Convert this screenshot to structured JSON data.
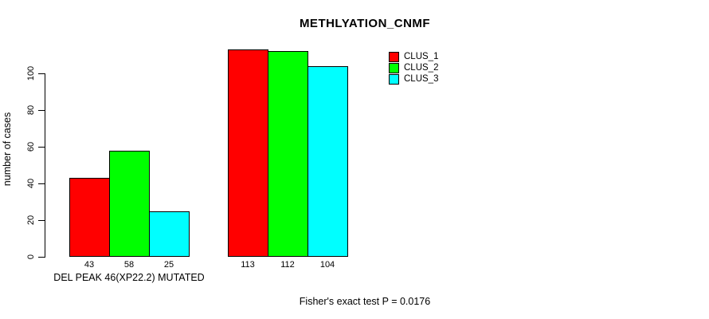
{
  "chart_data": {
    "type": "bar",
    "title": "METHLYATION_CNMF",
    "ylabel": "number of cases",
    "xlabel": "",
    "ylim": [
      0,
      113
    ],
    "yticks": [
      0,
      20,
      40,
      60,
      80,
      100
    ],
    "grid": false,
    "legend_position": "top-right",
    "series": [
      {
        "name": "CLUS_1",
        "color": "#ff0000",
        "values": [
          43,
          113
        ]
      },
      {
        "name": "CLUS_2",
        "color": "#00ff00",
        "values": [
          58,
          112
        ]
      },
      {
        "name": "CLUS_3",
        "color": "#00ffff",
        "values": [
          25,
          104
        ]
      }
    ],
    "groups": [
      {
        "label": "DEL PEAK 46(XP22.2) MUTATED"
      },
      {
        "label": ""
      }
    ],
    "bar_value_labels_shown": true,
    "annotation": "Fisher's exact test P = 0.0176",
    "colors": {
      "axis": "#000000",
      "text": "#000000",
      "background": "#ffffff"
    }
  }
}
